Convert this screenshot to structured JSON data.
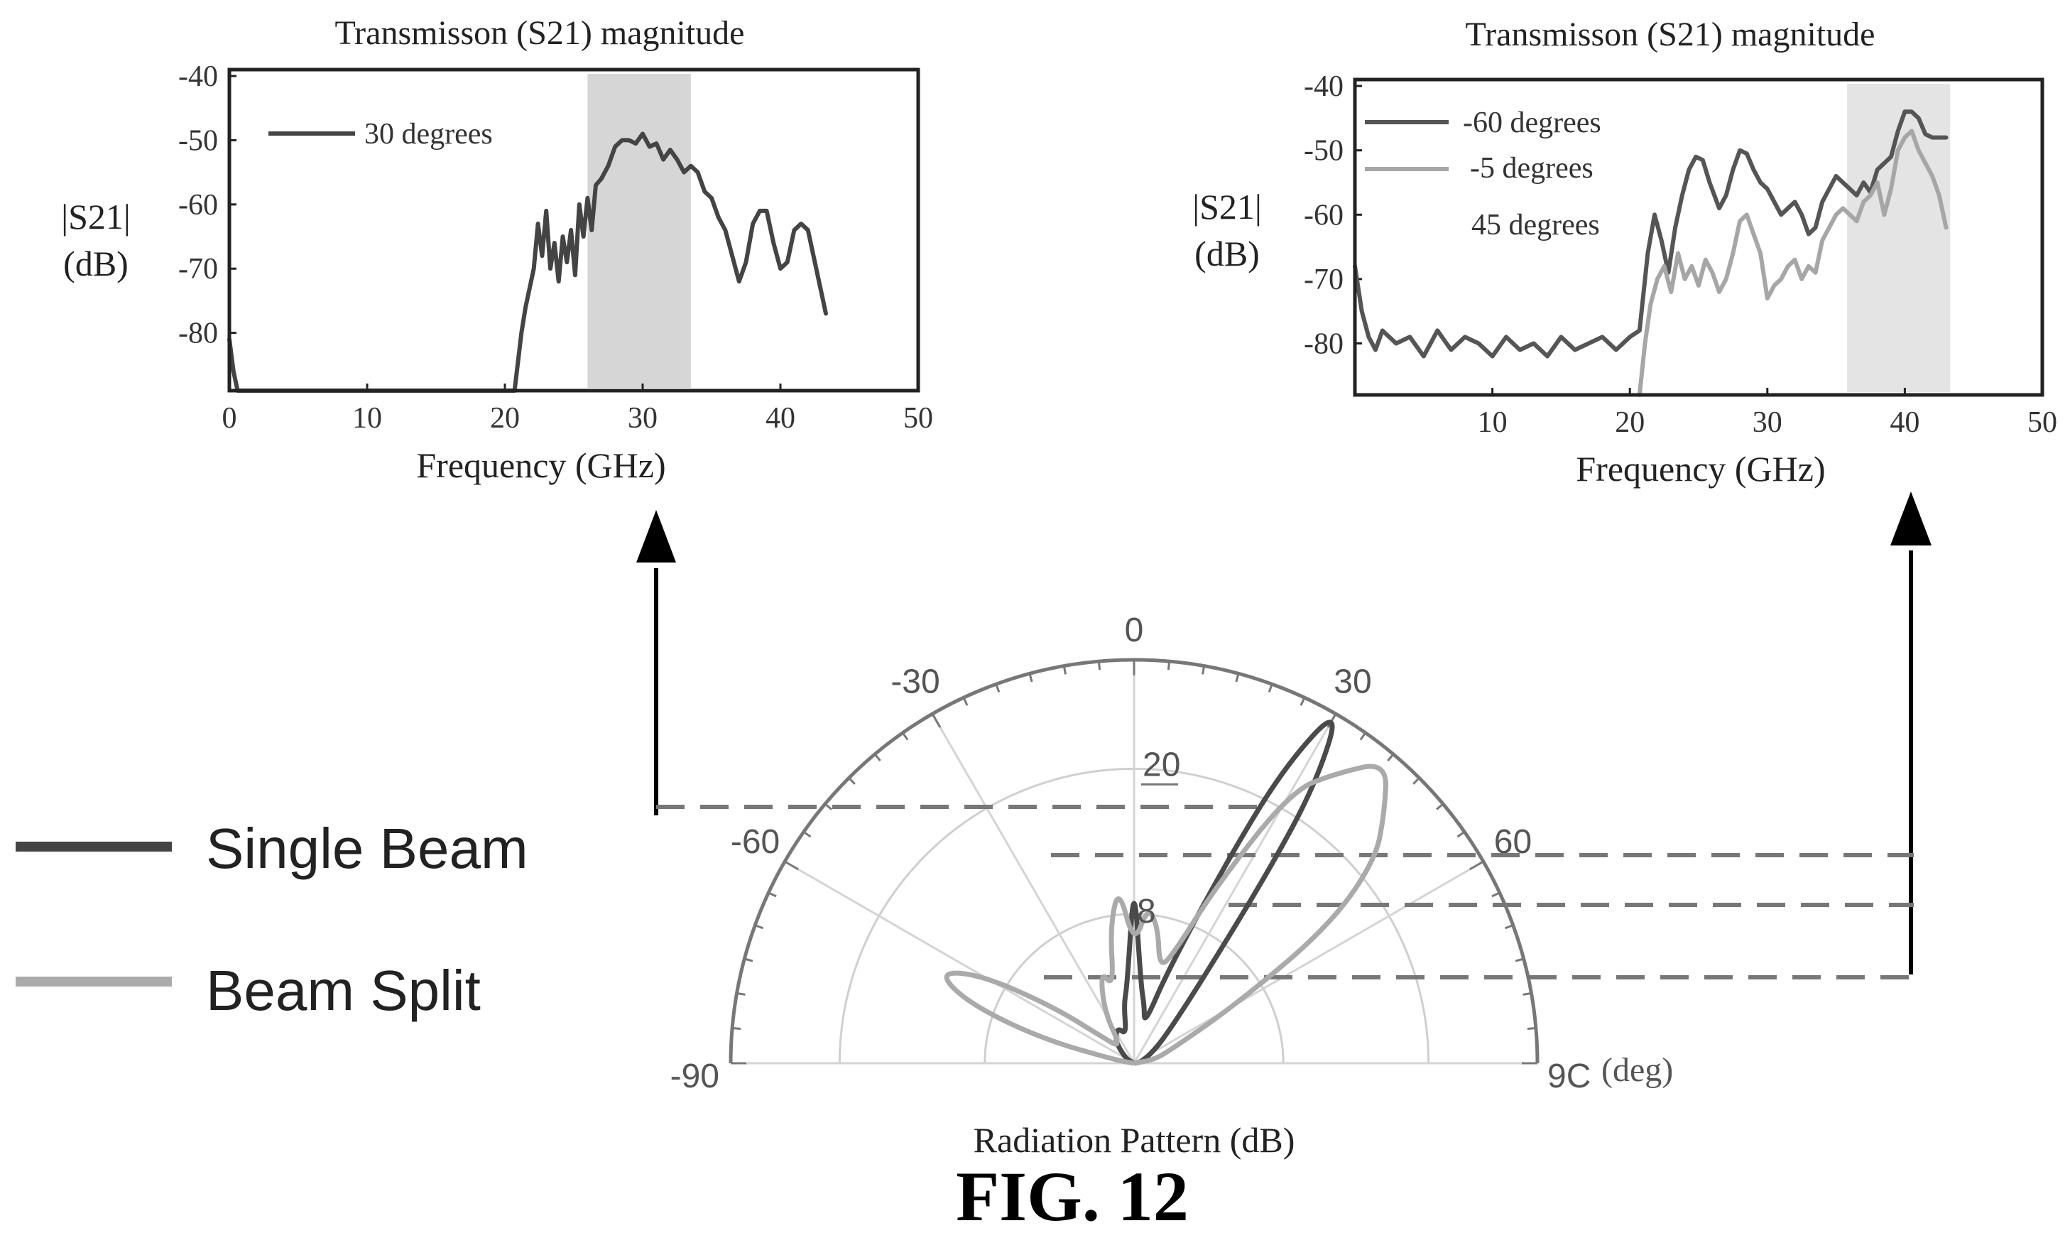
{
  "chart_data": [
    {
      "type": "line",
      "title": "Transmisson (S21) magnitude",
      "xlabel": "Frequency (GHz)",
      "ylabel": [
        "|S21|",
        "(dB)"
      ],
      "xlim": [
        0,
        50
      ],
      "ylim": [
        -89,
        -39
      ],
      "xticks": [
        "0",
        "10",
        "20",
        "30",
        "40",
        "50"
      ],
      "yticks": [
        "-40",
        "-50",
        "-60",
        "-70",
        "-80"
      ],
      "highlight_band": [
        26,
        33.5
      ],
      "legend_position": "top-left",
      "series": [
        {
          "name": "30 degrees",
          "color": "#444444",
          "x": [
            0,
            0.3,
            0.6,
            20.7,
            21.2,
            21.5,
            21.8,
            22.1,
            22.4,
            22.7,
            23,
            23.3,
            23.6,
            23.9,
            24.2,
            24.5,
            24.8,
            25.1,
            25.4,
            25.7,
            26,
            26.3,
            26.6,
            27,
            27.5,
            28,
            28.5,
            29,
            29.5,
            30,
            30.5,
            31,
            31.5,
            32,
            32.5,
            33,
            33.5,
            34,
            34.5,
            35,
            35.5,
            36,
            36.5,
            37,
            37.5,
            38,
            38.5,
            39,
            39.5,
            40,
            40.5,
            41,
            41.5,
            42,
            42.5,
            43,
            43.3
          ],
          "values": [
            -81,
            -86,
            -89,
            -89,
            -80,
            -76,
            -73,
            -70,
            -63,
            -68,
            -61,
            -70,
            -66,
            -72,
            -65,
            -69,
            -64,
            -71,
            -60,
            -65,
            -59,
            -64,
            -57,
            -56,
            -54,
            -51,
            -50,
            -50,
            -50.5,
            -49,
            -51,
            -50.5,
            -53,
            -51.5,
            -53,
            -55,
            -54,
            -55,
            -58,
            -59,
            -62,
            -64,
            -68,
            -72,
            -69,
            -63,
            -61,
            -61,
            -66,
            -70,
            -69,
            -64,
            -63,
            -64,
            -69,
            -74,
            -77
          ]
        }
      ]
    },
    {
      "type": "line",
      "title": "Transmisson (S21) magnitude",
      "xlabel": "Frequency (GHz)",
      "ylabel": [
        "|S21|",
        "(dB)"
      ],
      "xlim": [
        0,
        50
      ],
      "ylim": [
        -88,
        -39
      ],
      "xticks": [
        "10",
        "20",
        "30",
        "40",
        "50"
      ],
      "yticks": [
        "-40",
        "-50",
        "-60",
        "-70",
        "-80"
      ],
      "highlight_band": [
        35.8,
        43.3
      ],
      "legend_position": "top-left",
      "series": [
        {
          "name": "-60 degrees",
          "color": "#555555",
          "x": [
            0,
            0.5,
            1,
            1.5,
            2,
            3,
            4,
            5,
            6,
            7,
            8,
            9,
            10,
            11,
            12,
            13,
            14,
            15,
            16,
            17,
            18,
            19,
            20,
            20.7,
            21.3,
            21.8,
            22.3,
            22.8,
            23.3,
            23.8,
            24.3,
            24.8,
            25.3,
            25.8,
            26.5,
            27,
            27.5,
            28,
            28.5,
            29,
            29.5,
            30,
            30.5,
            31,
            31.5,
            32,
            32.5,
            33,
            33.5,
            34,
            34.5,
            35,
            35.5,
            36,
            36.5,
            37,
            37.5,
            38,
            38.5,
            39,
            39.5,
            40,
            40.5,
            41,
            41.5,
            42,
            42.5,
            43
          ],
          "values": [
            -68,
            -75,
            -79,
            -81,
            -78,
            -80,
            -79,
            -82,
            -78,
            -81,
            -79,
            -80,
            -82,
            -79,
            -81,
            -80,
            -82,
            -79,
            -81,
            -80,
            -79,
            -81,
            -79,
            -78,
            -66,
            -60,
            -64,
            -69,
            -62,
            -57,
            -53,
            -51,
            -51.5,
            -55,
            -59,
            -57,
            -53,
            -50,
            -50.5,
            -53,
            -55,
            -56,
            -58,
            -60,
            -59,
            -58,
            -60,
            -63,
            -62,
            -58,
            -56,
            -54,
            -55,
            -56,
            -57,
            -55,
            -56.5,
            -53,
            -52,
            -51,
            -47,
            -44,
            -44,
            -45,
            -47.5,
            -48,
            -48,
            -48
          ]
        },
        {
          "name": "-5 degrees",
          "color": "#a6a6a6",
          "x": [
            20.7,
            21.1,
            21.5,
            22,
            22.5,
            23,
            23.5,
            24,
            24.5,
            25,
            25.5,
            26,
            26.5,
            27,
            27.5,
            28,
            28.5,
            29,
            29.5,
            30,
            30.5,
            31,
            31.5,
            32,
            32.5,
            33,
            33.5,
            34,
            34.5,
            35,
            35.5,
            36,
            36.5,
            37,
            37.5,
            38,
            38.5,
            39,
            39.5,
            40,
            40.5,
            41,
            41.5,
            42,
            42.5,
            43
          ],
          "values": [
            -88,
            -80,
            -74,
            -70,
            -68,
            -72,
            -66,
            -70,
            -68,
            -71,
            -67,
            -69,
            -72,
            -70,
            -66,
            -61,
            -60,
            -63,
            -66,
            -73,
            -71,
            -70,
            -68,
            -67,
            -70,
            -68,
            -69,
            -64,
            -62,
            -60,
            -59,
            -60,
            -61,
            -58,
            -57,
            -55,
            -60,
            -56,
            -50,
            -48,
            -47,
            -50,
            -52,
            -54,
            -57,
            -62
          ]
        }
      ],
      "extra_legend_label": "45 degrees"
    },
    {
      "type": "polar",
      "title": "",
      "xlabel": "Radiation Pattern (dB)",
      "angle_unit_label": "(deg)",
      "angle_labels": [
        "-90",
        "-60",
        "-30",
        "0",
        "30",
        "60",
        "9C"
      ],
      "radial_labels": [
        "20",
        "8"
      ],
      "grid": true,
      "series": [
        {
          "name": "Single Beam",
          "color": "#4a4a4a",
          "angles_deg": [
            -60,
            -40,
            -25,
            -15,
            -10,
            -5,
            0,
            5,
            10,
            15,
            20,
            25,
            27,
            30,
            33,
            35,
            40,
            50,
            60,
            70,
            80
          ],
          "values_db": [
            0.5,
            1.5,
            2,
            1.5,
            3,
            4,
            9.5,
            4,
            3,
            2,
            5,
            12,
            17,
            21,
            17,
            12,
            5,
            2,
            1,
            0.5,
            0.3
          ]
        },
        {
          "name": "Beam Split",
          "color": "#aaaaaa",
          "angles_deg": [
            -80,
            -75,
            -70,
            -65,
            -60,
            -55,
            -50,
            -40,
            -30,
            -20,
            -15,
            -10,
            -5,
            0,
            5,
            10,
            15,
            20,
            25,
            30,
            35,
            40,
            45,
            50,
            55,
            60,
            70,
            80
          ],
          "values_db": [
            1,
            5,
            9,
            11,
            9,
            5,
            2,
            1,
            3,
            5,
            4,
            7,
            9,
            6,
            8,
            7,
            5,
            6,
            10,
            16,
            18,
            20,
            18,
            16,
            12,
            6,
            2,
            1
          ]
        }
      ],
      "reference_levels_db": [
        20,
        11.5,
        9.5,
        6.5
      ]
    }
  ],
  "figure_label": "FIG. 12"
}
